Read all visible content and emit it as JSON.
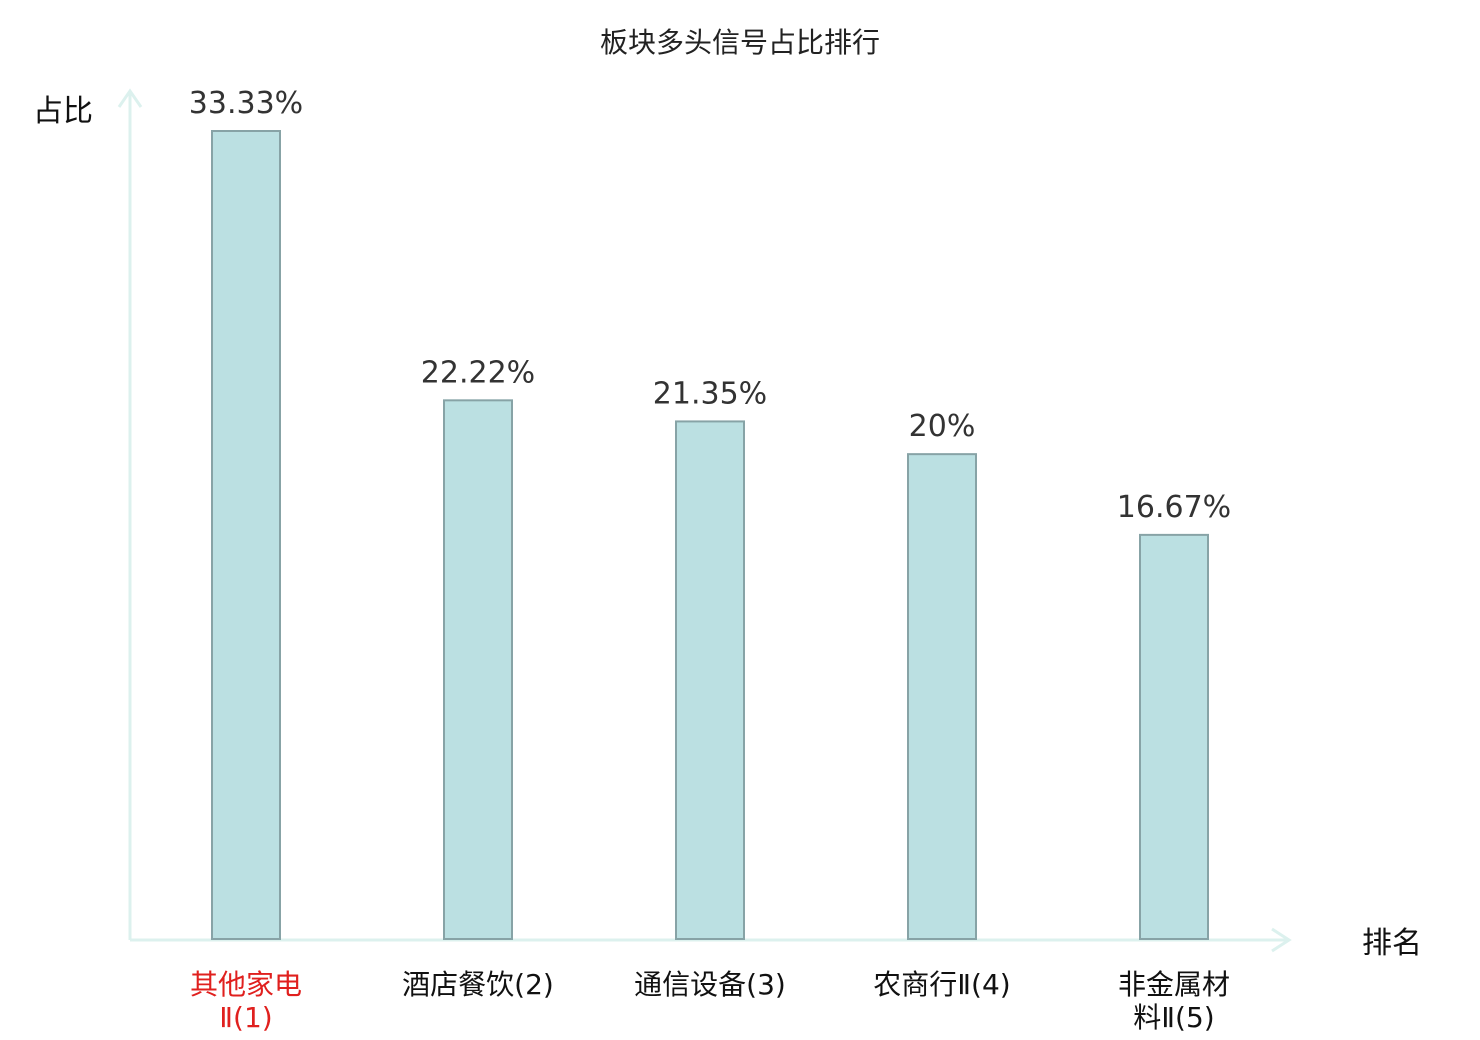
{
  "chart_data": {
    "type": "bar",
    "title": "板块多头信号占比排行",
    "xlabel": "排名",
    "ylabel": "占比",
    "categories": [
      [
        "其他家电",
        "Ⅱ(1)"
      ],
      [
        "酒店餐饮(2)"
      ],
      [
        "通信设备(3)"
      ],
      [
        "农商行Ⅱ(4)"
      ],
      [
        "非金属材",
        "料Ⅱ(5)"
      ]
    ],
    "values": [
      33.33,
      22.22,
      21.35,
      20,
      16.67
    ],
    "value_labels": [
      "33.33%",
      "22.22%",
      "21.35%",
      "20%",
      "16.67%"
    ],
    "highlight_index": 0,
    "ylim": [
      0,
      33.33
    ],
    "grid": false,
    "colors": {
      "bar_fill": "#bbe0e2",
      "bar_stroke": "#87a3a6",
      "axis": "#dcf1ee",
      "highlight_text": "#e0201e"
    }
  }
}
